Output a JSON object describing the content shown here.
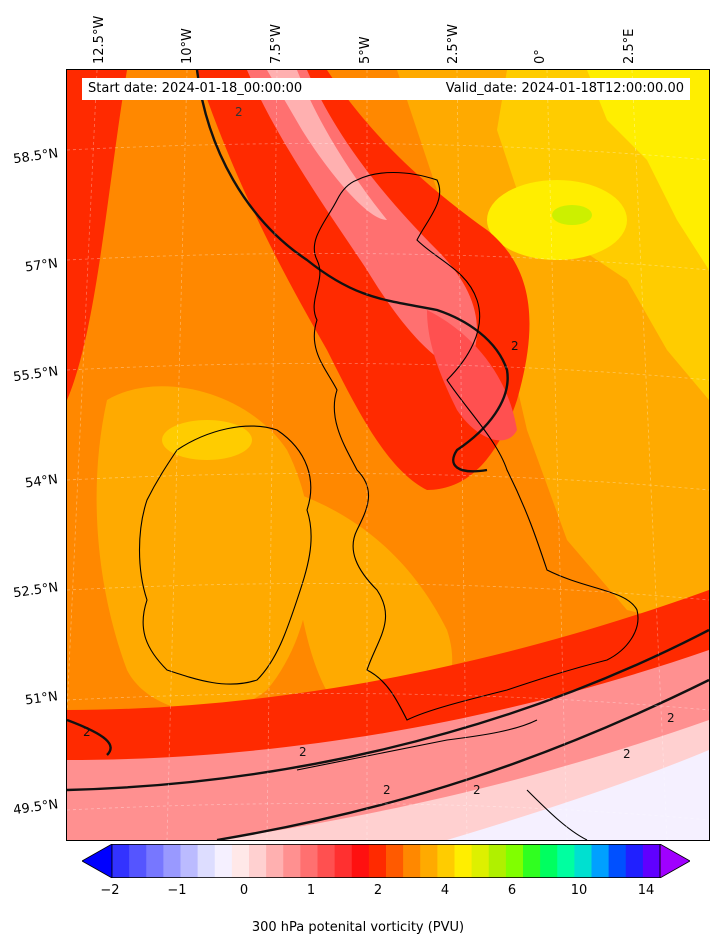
{
  "header": {
    "start_date": "Start date: 2024-01-18_00:00:00",
    "valid_date": "Valid_date: 2024-01-18T12:00:00.00"
  },
  "axes": {
    "lon_labels": [
      "12.5°W",
      "10°W",
      "7.5°W",
      "5°W",
      "2.5°W",
      "0°",
      "2.5°E"
    ],
    "lat_labels": [
      "58.5°N",
      "57°N",
      "55.5°N",
      "54°N",
      "52.5°N",
      "51°N",
      "49.5°N"
    ]
  },
  "contour": {
    "label": "2"
  },
  "colorbar": {
    "ticks": [
      "−2",
      "−1",
      "0",
      "1",
      "2",
      "4",
      "6",
      "10",
      "14"
    ],
    "label": "300 hPa potenital vorticity (PVU)",
    "colors": [
      "#0000ff",
      "#3333ff",
      "#5555ff",
      "#7777ff",
      "#9999ff",
      "#bbbbff",
      "#ddddff",
      "#f5f0ff",
      "#ffe8e8",
      "#ffd0d0",
      "#ffb0b0",
      "#ff9090",
      "#ff7070",
      "#ff5050",
      "#ff3030",
      "#ff1010",
      "#ff2a00",
      "#ff5a00",
      "#ff8800",
      "#ffaa00",
      "#ffcc00",
      "#ffee00",
      "#ddf000",
      "#b0f000",
      "#80ff00",
      "#30ff20",
      "#00ff60",
      "#00ffa0",
      "#00e0d0",
      "#00a0ff",
      "#0050ff",
      "#2020ff",
      "#6000ff",
      "#a000ff"
    ]
  },
  "map_colors": {
    "background": "#ff7a00",
    "high_pv": "#ff2a00",
    "very_high_pv": "#ff9090",
    "moderate_pv": "#ffaa00",
    "low_pv": "#ffee00",
    "coast": "#000000"
  }
}
